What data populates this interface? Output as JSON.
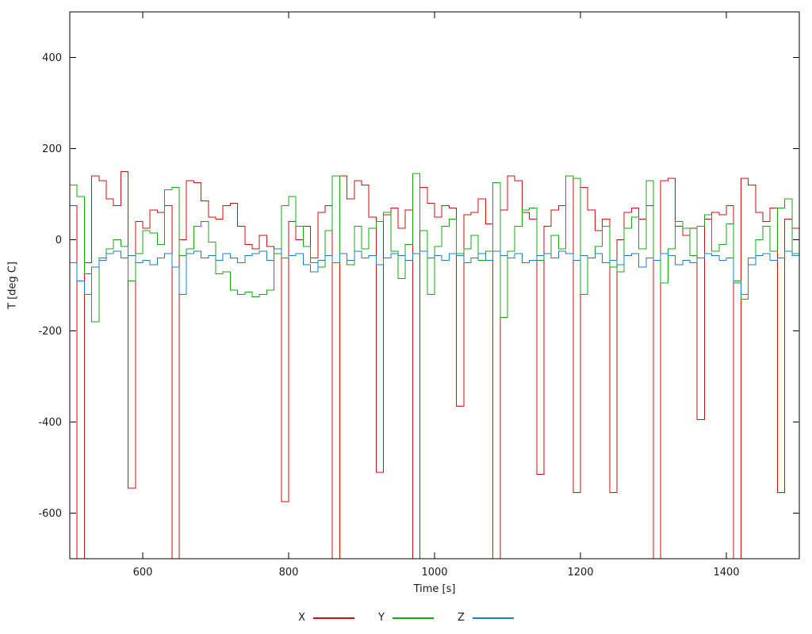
{
  "chart_data": {
    "type": "line",
    "style": "steps",
    "title": "",
    "xlabel": "Time [s]",
    "ylabel": "T [deg C]",
    "xlim": [
      500,
      1500
    ],
    "ylim": [
      -700,
      500
    ],
    "xticks": [
      600,
      800,
      1000,
      1200,
      1400
    ],
    "yticks": [
      -600,
      -400,
      -200,
      0,
      200,
      400
    ],
    "grid": false,
    "legend_position": "bottom-center",
    "x_start": 500,
    "x_step": 10,
    "series": [
      {
        "name": "X",
        "color": "#cc1111",
        "values": [
          75,
          -700,
          -50,
          140,
          130,
          90,
          75,
          150,
          -545,
          40,
          25,
          65,
          60,
          75,
          -700,
          0,
          130,
          125,
          85,
          50,
          45,
          75,
          80,
          30,
          -10,
          -20,
          10,
          -15,
          -30,
          -575,
          40,
          0,
          30,
          -40,
          60,
          75,
          -700,
          140,
          90,
          130,
          120,
          50,
          -510,
          55,
          70,
          25,
          65,
          -700,
          115,
          80,
          50,
          75,
          70,
          -365,
          55,
          60,
          90,
          35,
          -700,
          65,
          140,
          130,
          60,
          45,
          -515,
          30,
          65,
          75,
          140,
          -555,
          115,
          65,
          20,
          45,
          -555,
          0,
          60,
          70,
          45,
          75,
          -700,
          130,
          135,
          30,
          10,
          25,
          -395,
          45,
          60,
          55,
          75,
          -700,
          135,
          120,
          60,
          40,
          70,
          -555,
          45,
          25,
          65
        ]
      },
      {
        "name": "Y",
        "color": "#11aa11",
        "values": [
          120,
          95,
          -75,
          -180,
          -40,
          -20,
          0,
          -15,
          -90,
          -30,
          20,
          15,
          -10,
          110,
          115,
          -35,
          -20,
          30,
          40,
          -5,
          -75,
          -70,
          -110,
          -120,
          -115,
          -125,
          -120,
          -110,
          -30,
          75,
          95,
          30,
          -15,
          -50,
          -60,
          20,
          140,
          -30,
          -55,
          30,
          -20,
          25,
          40,
          60,
          -25,
          -85,
          -10,
          145,
          20,
          -120,
          -15,
          30,
          45,
          -30,
          -20,
          10,
          -45,
          -25,
          125,
          -170,
          -25,
          30,
          65,
          70,
          -45,
          -30,
          10,
          -20,
          140,
          135,
          -120,
          -40,
          -15,
          30,
          -60,
          -70,
          25,
          50,
          -20,
          130,
          -45,
          -95,
          -20,
          40,
          25,
          -35,
          30,
          55,
          -25,
          -10,
          35,
          -90,
          -130,
          -40,
          0,
          30,
          -25,
          70,
          90,
          -30,
          75
        ]
      },
      {
        "name": "Z",
        "color": "#1b7ec2",
        "values": [
          -50,
          -90,
          -120,
          -60,
          -45,
          -30,
          -25,
          -40,
          -35,
          -50,
          -45,
          -55,
          -40,
          -30,
          -60,
          -120,
          -30,
          -25,
          -40,
          -35,
          -45,
          -30,
          -40,
          -50,
          -35,
          -30,
          -25,
          -45,
          -20,
          -40,
          -35,
          -30,
          -55,
          -70,
          -45,
          -35,
          -50,
          -30,
          -45,
          -25,
          -40,
          -35,
          -55,
          -40,
          -30,
          -35,
          -45,
          -30,
          -25,
          -40,
          -35,
          -45,
          -30,
          -35,
          -50,
          -40,
          -30,
          -45,
          -25,
          -35,
          -40,
          -30,
          -50,
          -45,
          -35,
          -30,
          -40,
          -25,
          -30,
          -45,
          -35,
          -40,
          -30,
          -50,
          -45,
          -55,
          -35,
          -30,
          -60,
          -40,
          -45,
          -30,
          -35,
          -55,
          -45,
          -50,
          -40,
          -30,
          -35,
          -45,
          -40,
          -95,
          -120,
          -55,
          -35,
          -30,
          -45,
          -40,
          -25,
          -35,
          -30
        ]
      }
    ]
  },
  "axis": {
    "border_color": "#000000",
    "text_color": "#1a1a1a"
  }
}
